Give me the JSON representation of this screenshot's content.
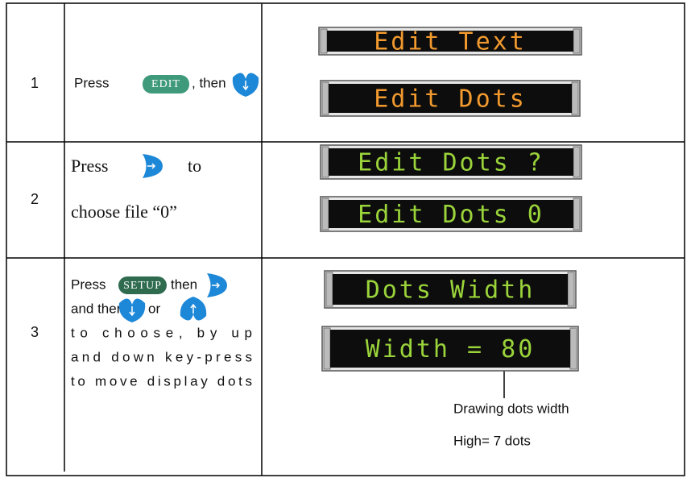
{
  "table": {
    "rows": [
      {
        "step": "1",
        "press": "Press",
        "button": "EDIT",
        "then": ", then",
        "displays": [
          {
            "text": "Edit Text",
            "color": "orange"
          },
          {
            "text": "Edit Dots",
            "color": "orange"
          }
        ]
      },
      {
        "step": "2",
        "press": "Press",
        "to": "to",
        "line2": "choose file “0”",
        "displays": [
          {
            "text": "Edit Dots ?",
            "color": "green"
          },
          {
            "text": "Edit Dots 0",
            "color": "green"
          }
        ]
      },
      {
        "step": "3",
        "press": "Press",
        "button": "SETUP",
        "then": "then",
        "and_then": "and then",
        "or": "or",
        "line3": "to choose,  by up",
        "line4": "and down key-press",
        "line5": "to move display dots",
        "displays": [
          {
            "text": "Dots Width",
            "color": "green"
          },
          {
            "text": "Width = 80",
            "color": "green"
          }
        ],
        "note1": "Drawing dots width",
        "note2": "High= 7 dots"
      }
    ]
  }
}
